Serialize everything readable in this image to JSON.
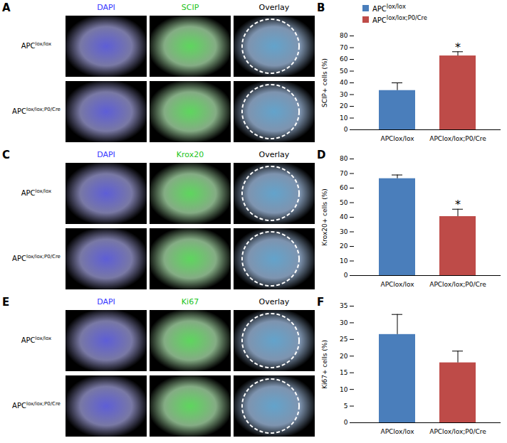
{
  "image_panels": [
    {
      "panel": "A",
      "columns": [
        {
          "label": "DAPI",
          "color": "#3535ff"
        },
        {
          "label": "SCIP",
          "color": "#22c422"
        },
        {
          "label": "Overlay",
          "color": "#000000"
        }
      ],
      "rows": [
        "APClox/lox",
        "APClox/lox;P0/Cre"
      ]
    },
    {
      "panel": "C",
      "columns": [
        {
          "label": "DAPI",
          "color": "#3535ff"
        },
        {
          "label": "Krox20",
          "color": "#22c422"
        },
        {
          "label": "Overlay",
          "color": "#000000"
        }
      ],
      "rows": [
        "APClox/lox",
        "APClox/lox;P0/Cre"
      ]
    },
    {
      "panel": "E",
      "columns": [
        {
          "label": "DAPI",
          "color": "#3535ff"
        },
        {
          "label": "Ki67",
          "color": "#22c422"
        },
        {
          "label": "Overlay",
          "color": "#000000"
        }
      ],
      "rows": [
        "APClox/lox",
        "APClox/lox;P0/Cre"
      ]
    }
  ],
  "chart_data": [
    {
      "panel": "B",
      "type": "bar",
      "ylabel": "SCIP+ cells (%)",
      "categories": [
        "APClox/lox",
        "APClox/lox;P0/Cre"
      ],
      "values": [
        33.5,
        63
      ],
      "errors": [
        6.5,
        3.5
      ],
      "colors": [
        "#4a7ebb",
        "#be4b48"
      ],
      "ylim": [
        0,
        80
      ],
      "yticks": [
        0,
        10,
        20,
        30,
        40,
        50,
        60,
        70,
        80
      ],
      "legend": "top",
      "annotations": [
        {
          "category": "APClox/lox;P0/Cre",
          "text": "*"
        }
      ]
    },
    {
      "panel": "D",
      "type": "bar",
      "ylabel": "Krox20+ cells (%)",
      "categories": [
        "APClox/lox",
        "APClox/lox;P0/Cre"
      ],
      "values": [
        66.5,
        40.5
      ],
      "errors": [
        2.5,
        5
      ],
      "colors": [
        "#4a7ebb",
        "#be4b48"
      ],
      "ylim": [
        0,
        80
      ],
      "yticks": [
        0,
        10,
        20,
        30,
        40,
        50,
        60,
        70,
        80
      ],
      "annotations": [
        {
          "category": "APClox/lox;P0/Cre",
          "text": "*"
        }
      ]
    },
    {
      "panel": "F",
      "type": "bar",
      "ylabel": "Ki67+ cells (%)",
      "categories": [
        "APClox/lox",
        "APClox/lox;P0/Cre"
      ],
      "values": [
        26.5,
        18
      ],
      "errors": [
        6,
        3.5
      ],
      "colors": [
        "#4a7ebb",
        "#be4b48"
      ],
      "ylim": [
        0,
        35
      ],
      "yticks": [
        0,
        5,
        10,
        15,
        20,
        25,
        30,
        35
      ]
    }
  ]
}
